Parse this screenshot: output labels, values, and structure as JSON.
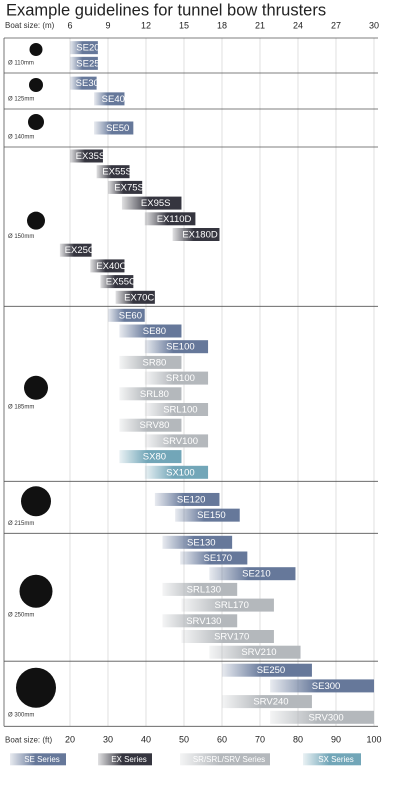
{
  "chart_data": {
    "type": "range_bar",
    "title": "Example guidelines for tunnel bow thrusters",
    "x_label": "Boat size: (m)",
    "x2_label": "Boat size: (ft)",
    "xlim": [
      6,
      30
    ],
    "xticks": [
      6,
      9,
      12,
      15,
      18,
      21,
      24,
      27,
      30
    ],
    "x2lim": [
      20,
      100
    ],
    "x2ticks": [
      20,
      30,
      40,
      50,
      60,
      70,
      80,
      90,
      100
    ],
    "grid": true,
    "series": [
      {
        "name": "SE Series",
        "color": "#66789a"
      },
      {
        "name": "EX Series",
        "color": "#35353f"
      },
      {
        "name": "SR/SRL/SRV Series",
        "color": "#b4b8bc"
      },
      {
        "name": "SX Series",
        "color": "#72a6b8"
      }
    ],
    "groups": [
      {
        "label": "Ø 110mm",
        "bars": [
          {
            "label": "SE20",
            "series": 0,
            "values": [
              6,
              8.2
            ]
          },
          {
            "label": "SE25",
            "series": 0,
            "values": [
              6,
              8.2
            ]
          }
        ]
      },
      {
        "label": "Ø 125mm",
        "bars": [
          {
            "label": "SE30",
            "series": 0,
            "values": [
              6,
              8.1
            ]
          },
          {
            "label": "SE40",
            "series": 0,
            "values": [
              7.9,
              10.3
            ]
          }
        ]
      },
      {
        "label": "Ø 140mm",
        "bars": [
          {
            "label": "SE50",
            "series": 0,
            "values": [
              7.9,
              11
            ]
          }
        ]
      },
      {
        "label": "Ø 150mm",
        "bars": [
          {
            "label": "EX35S",
            "series": 1,
            "values": [
              6,
              8.6
            ]
          },
          {
            "label": "EX55S",
            "series": 1,
            "values": [
              8.1,
              10.7
            ]
          },
          {
            "label": "EX75S",
            "series": 1,
            "values": [
              9,
              11.7
            ]
          },
          {
            "label": "EX95S",
            "series": 1,
            "values": [
              10.1,
              14.8
            ]
          },
          {
            "label": "EX110D",
            "series": 1,
            "values": [
              11.9,
              15.9
            ]
          },
          {
            "label": "EX180D",
            "series": 1,
            "values": [
              14.1,
              17.8
            ]
          },
          {
            "label": "EX25C",
            "series": 1,
            "values": [
              5.2,
              7.7
            ]
          },
          {
            "label": "EX40C",
            "series": 1,
            "values": [
              7.6,
              10.3
            ]
          },
          {
            "label": "EX55C",
            "series": 1,
            "values": [
              8.4,
              11
            ]
          },
          {
            "label": "EX70C",
            "series": 1,
            "values": [
              9.6,
              12.7
            ]
          }
        ]
      },
      {
        "label": "Ø 185mm",
        "bars": [
          {
            "label": "SE60",
            "series": 0,
            "values": [
              9,
              11.9
            ]
          },
          {
            "label": "SE80",
            "series": 0,
            "values": [
              9.9,
              14.8
            ]
          },
          {
            "label": "SE100",
            "series": 0,
            "values": [
              11.9,
              16.9
            ]
          },
          {
            "label": "SR80",
            "series": 2,
            "values": [
              9.9,
              14.8
            ]
          },
          {
            "label": "SR100",
            "series": 2,
            "values": [
              11.9,
              16.9
            ]
          },
          {
            "label": "SRL80",
            "series": 2,
            "values": [
              9.9,
              14.8
            ]
          },
          {
            "label": "SRL100",
            "series": 2,
            "values": [
              11.9,
              16.9
            ]
          },
          {
            "label": "SRV80",
            "series": 2,
            "values": [
              9.9,
              14.8
            ]
          },
          {
            "label": "SRV100",
            "series": 2,
            "values": [
              11.9,
              16.9
            ]
          },
          {
            "label": "SX80",
            "series": 3,
            "values": [
              9.9,
              14.8
            ]
          },
          {
            "label": "SX100",
            "series": 3,
            "values": [
              11.9,
              16.9
            ]
          }
        ]
      },
      {
        "label": "Ø 215mm",
        "bars": [
          {
            "label": "SE120",
            "series": 0,
            "values": [
              12.7,
              17.8
            ]
          },
          {
            "label": "SE150",
            "series": 0,
            "values": [
              14.3,
              19.4
            ]
          }
        ]
      },
      {
        "label": "Ø 250mm",
        "bars": [
          {
            "label": "SE130",
            "series": 0,
            "values": [
              13.3,
              18.8
            ]
          },
          {
            "label": "SE170",
            "series": 0,
            "values": [
              14.7,
              20
            ]
          },
          {
            "label": "SE210",
            "series": 0,
            "values": [
              17,
              23.8
            ]
          },
          {
            "label": "SRL130",
            "series": 2,
            "values": [
              13.3,
              19.2
            ]
          },
          {
            "label": "SRL170",
            "series": 2,
            "values": [
              14.8,
              22.1
            ]
          },
          {
            "label": "SRV130",
            "series": 2,
            "values": [
              13.3,
              19.2
            ]
          },
          {
            "label": "SRV170",
            "series": 2,
            "values": [
              14.8,
              22.1
            ]
          },
          {
            "label": "SRV210",
            "series": 2,
            "values": [
              17,
              24.2
            ]
          }
        ]
      },
      {
        "label": "Ø 300mm",
        "bars": [
          {
            "label": "SE250",
            "series": 0,
            "values": [
              18,
              25.1
            ]
          },
          {
            "label": "SE300",
            "series": 0,
            "values": [
              21.8,
              30
            ]
          },
          {
            "label": "SRV240",
            "series": 2,
            "values": [
              18,
              25.1
            ]
          },
          {
            "label": "SRV300",
            "series": 2,
            "values": [
              21.8,
              30
            ]
          }
        ]
      }
    ]
  }
}
